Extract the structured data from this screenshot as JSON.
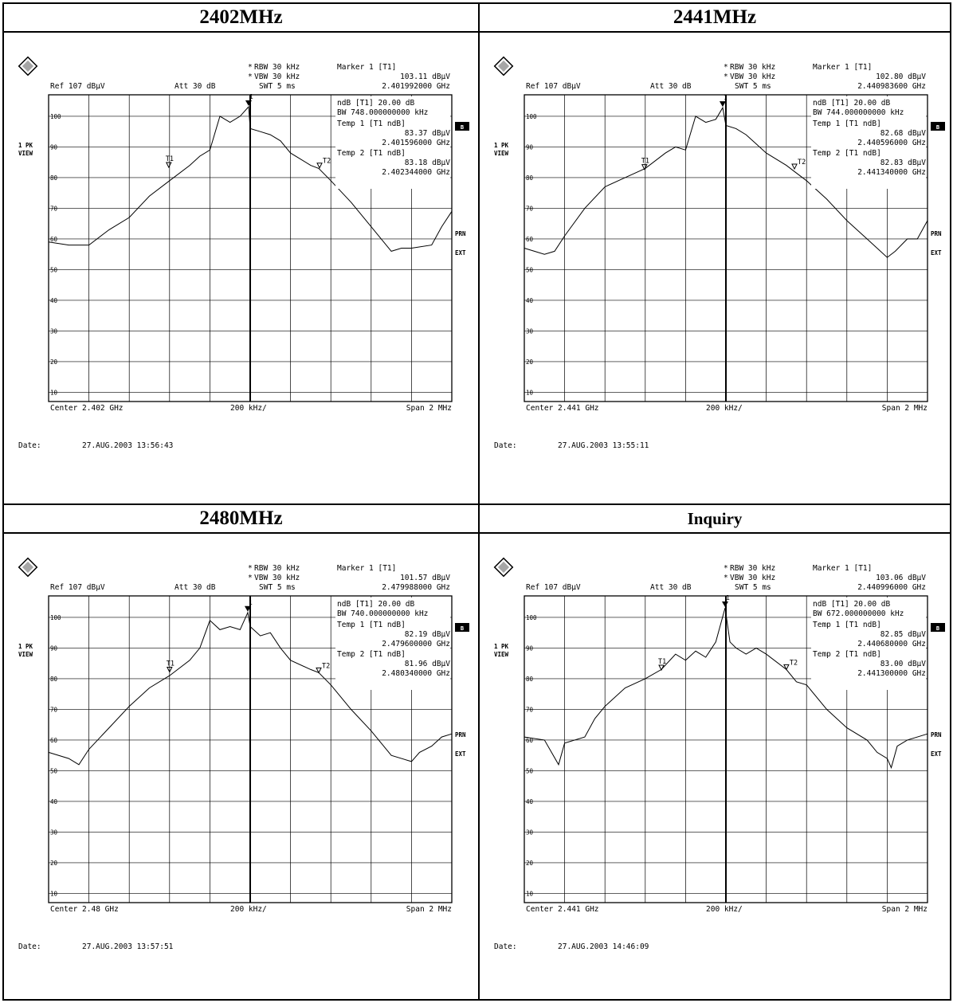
{
  "panels": [
    {
      "title": "2402MHz",
      "rbw": "RBW 30 kHz",
      "vbw": "VBW 30 kHz",
      "swt": "SWT 5 ms",
      "marker": "Marker 1 [T1]",
      "marker_level": "103.11 dBµV",
      "marker_freq": "2.401992000 GHz",
      "ref": "Ref  107 dBµV",
      "att": "Att  30 dB",
      "ndb": "ndB [T1]    20.00 dB",
      "bw": "BW 748.000000000 kHz",
      "temp1": "Temp 1 [T1 ndB]",
      "temp1_level": "83.37 dBµV",
      "temp1_freq": "2.401596000 GHz",
      "temp2": "Temp 2 [T1 ndB]",
      "temp2_level": "83.18 dBµV",
      "temp2_freq": "2.402344000 GHz",
      "center": "Center 2.402 GHz",
      "div": "200 kHz/",
      "span": "Span 2 MHz",
      "date_label": "Date:",
      "date": "27.AUG.2003  13:56:43"
    },
    {
      "title": "2441MHz",
      "rbw": "RBW 30 kHz",
      "vbw": "VBW 30 kHz",
      "swt": "SWT 5 ms",
      "marker": "Marker 1 [T1]",
      "marker_level": "102.80 dBµV",
      "marker_freq": "2.440983600 GHz",
      "ref": "Ref  107 dBµV",
      "att": "Att  30 dB",
      "ndb": "ndB [T1]    20.00 dB",
      "bw": "BW 744.000000000 kHz",
      "temp1": "Temp 1 [T1 ndB]",
      "temp1_level": "82.68 dBµV",
      "temp1_freq": "2.440596000 GHz",
      "temp2": "Temp 2 [T1 ndB]",
      "temp2_level": "82.83 dBµV",
      "temp2_freq": "2.441340000 GHz",
      "center": "Center 2.441 GHz",
      "div": "200 kHz/",
      "span": "Span 2 MHz",
      "date_label": "Date:",
      "date": "27.AUG.2003  13:55:11"
    },
    {
      "title": "2480MHz",
      "rbw": "RBW 30 kHz",
      "vbw": "VBW 30 kHz",
      "swt": "SWT 5 ms",
      "marker": "Marker 1 [T1]",
      "marker_level": "101.57 dBµV",
      "marker_freq": "2.479988000 GHz",
      "ref": "Ref  107 dBµV",
      "att": "Att  30 dB",
      "ndb": "ndB [T1]    20.00 dB",
      "bw": "BW 740.000000000 kHz",
      "temp1": "Temp 1 [T1 ndB]",
      "temp1_level": "82.19 dBµV",
      "temp1_freq": "2.479600000 GHz",
      "temp2": "Temp 2 [T1 ndB]",
      "temp2_level": "81.96 dBµV",
      "temp2_freq": "2.480340000 GHz",
      "center": "Center 2.48 GHz",
      "div": "200 kHz/",
      "span": "Span 2 MHz",
      "date_label": "Date:",
      "date": "27.AUG.2003  13:57:51"
    },
    {
      "title": "Inquiry",
      "rbw": "RBW 30 kHz",
      "vbw": "VBW 30 kHz",
      "swt": "SWT 5 ms",
      "marker": "Marker 1 [T1]",
      "marker_level": "103.06 dBµV",
      "marker_freq": "2.440996000 GHz",
      "ref": "Ref  107 dBµV",
      "att": "Att  30 dB",
      "ndb": "ndB [T1]    20.00 dB",
      "bw": "BW 672.000000000 kHz",
      "temp1": "Temp 1 [T1 ndB]",
      "temp1_level": "82.85 dBµV",
      "temp1_freq": "2.440680000 GHz",
      "temp2": "Temp 2 [T1 ndB]",
      "temp2_level": "83.00 dBµV",
      "temp2_freq": "2.441300000 GHz",
      "center": "Center 2.441 GHz",
      "div": "200 kHz/",
      "span": "Span 2 MHz",
      "date_label": "Date:",
      "date": "27.AUG.2003  14:46:09"
    }
  ],
  "side_labels": {
    "trace": "1 PK",
    "mode": "VIEW",
    "b": "B",
    "prn": "PRN",
    "ext": "EXT",
    "t1": "T1",
    "t2": "T2",
    "m1": "1"
  },
  "chart_data": [
    {
      "type": "line",
      "title": "2402MHz",
      "x_unit": "MHz",
      "y_unit": "dBµV",
      "xlim": [
        2401.0,
        2403.0
      ],
      "ylim": [
        7,
        107
      ],
      "y_ticks": [
        10,
        20,
        30,
        40,
        50,
        60,
        70,
        80,
        90,
        100
      ],
      "grid": true,
      "series": [
        {
          "x": [
            2401.0,
            2401.1,
            2401.2,
            2401.3,
            2401.4,
            2401.5,
            2401.6,
            2401.7,
            2401.75,
            2401.8,
            2401.85,
            2401.9,
            2401.95,
            2401.992,
            2402.0,
            2402.05,
            2402.1,
            2402.15,
            2402.2,
            2402.25,
            2402.3,
            2402.34,
            2402.4,
            2402.5,
            2402.6,
            2402.7,
            2402.75,
            2402.8,
            2402.9,
            2402.95,
            2403.0
          ],
          "y": [
            59,
            58,
            58,
            63,
            67,
            74,
            79,
            84,
            87,
            89,
            100,
            98,
            100,
            103.1,
            96,
            95,
            94,
            92,
            88,
            86,
            84,
            83,
            79,
            72,
            64,
            56,
            57,
            57,
            58,
            64,
            69
          ]
        }
      ]
    },
    {
      "type": "line",
      "title": "2441MHz",
      "x_unit": "MHz",
      "y_unit": "dBµV",
      "xlim": [
        2440.0,
        2442.0
      ],
      "ylim": [
        7,
        107
      ],
      "y_ticks": [
        10,
        20,
        30,
        40,
        50,
        60,
        70,
        80,
        90,
        100
      ],
      "grid": true,
      "series": [
        {
          "x": [
            2440.0,
            2440.05,
            2440.1,
            2440.15,
            2440.2,
            2440.3,
            2440.4,
            2440.5,
            2440.6,
            2440.7,
            2440.75,
            2440.8,
            2440.85,
            2440.9,
            2440.95,
            2440.984,
            2441.0,
            2441.05,
            2441.1,
            2441.15,
            2441.2,
            2441.3,
            2441.34,
            2441.4,
            2441.5,
            2441.6,
            2441.7,
            2441.8,
            2441.84,
            2441.9,
            2441.95,
            2442.0
          ],
          "y": [
            57,
            56,
            55,
            56,
            61,
            70,
            77,
            80,
            83,
            88,
            90,
            89,
            100,
            98,
            99,
            102.8,
            97,
            96,
            94,
            91,
            88,
            84,
            82,
            79,
            73,
            66,
            60,
            54,
            56,
            60,
            60,
            66
          ]
        }
      ]
    },
    {
      "type": "line",
      "title": "2480MHz",
      "x_unit": "MHz",
      "y_unit": "dBµV",
      "xlim": [
        2479.0,
        2481.0
      ],
      "ylim": [
        7,
        107
      ],
      "y_ticks": [
        10,
        20,
        30,
        40,
        50,
        60,
        70,
        80,
        90,
        100
      ],
      "grid": true,
      "series": [
        {
          "x": [
            2479.0,
            2479.1,
            2479.15,
            2479.2,
            2479.3,
            2479.4,
            2479.5,
            2479.6,
            2479.7,
            2479.75,
            2479.8,
            2479.85,
            2479.9,
            2479.95,
            2479.988,
            2480.0,
            2480.05,
            2480.1,
            2480.15,
            2480.2,
            2480.3,
            2480.34,
            2480.4,
            2480.5,
            2480.6,
            2480.7,
            2480.8,
            2480.84,
            2480.9,
            2480.95,
            2481.0
          ],
          "y": [
            56,
            54,
            52,
            57,
            64,
            71,
            77,
            81,
            86,
            90,
            99,
            96,
            97,
            96,
            101.6,
            97,
            94,
            95,
            90,
            86,
            83,
            82,
            78,
            70,
            63,
            55,
            53,
            56,
            58,
            61,
            62
          ]
        }
      ]
    },
    {
      "type": "line",
      "title": "Inquiry",
      "x_unit": "MHz",
      "y_unit": "dBµV",
      "xlim": [
        2440.0,
        2442.0
      ],
      "ylim": [
        7,
        107
      ],
      "y_ticks": [
        10,
        20,
        30,
        40,
        50,
        60,
        70,
        80,
        90,
        100
      ],
      "grid": true,
      "series": [
        {
          "x": [
            2440.0,
            2440.1,
            2440.17,
            2440.2,
            2440.3,
            2440.35,
            2440.4,
            2440.5,
            2440.6,
            2440.68,
            2440.75,
            2440.8,
            2440.85,
            2440.9,
            2440.95,
            2440.996,
            2441.02,
            2441.05,
            2441.1,
            2441.15,
            2441.2,
            2441.3,
            2441.35,
            2441.4,
            2441.5,
            2441.6,
            2441.7,
            2441.75,
            2441.8,
            2441.82,
            2441.85,
            2441.9,
            2442.0
          ],
          "y": [
            61,
            60,
            52,
            59,
            61,
            67,
            71,
            77,
            80,
            83,
            88,
            86,
            89,
            87,
            92,
            103.1,
            92,
            90,
            88,
            90,
            88,
            83,
            79,
            78,
            70,
            64,
            60,
            56,
            54,
            51,
            58,
            60,
            62
          ]
        }
      ]
    }
  ]
}
